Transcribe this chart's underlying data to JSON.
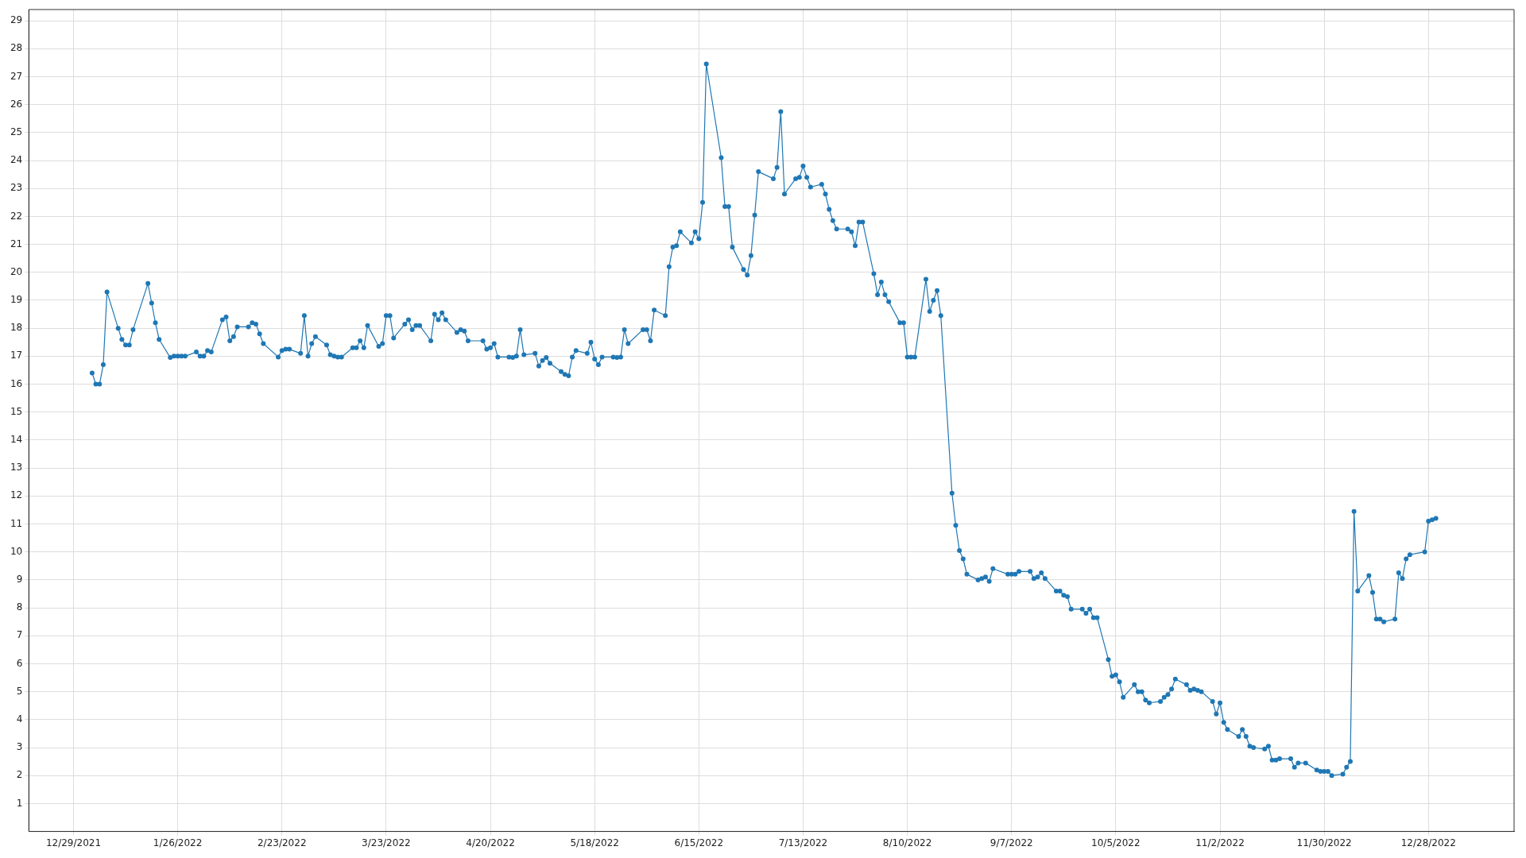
{
  "chart_data": {
    "type": "line",
    "color": "#1f77b4",
    "marker": "circle",
    "grid": true,
    "xlim": [
      "2021-12-17",
      "2023-01-20"
    ],
    "xticks": [
      {
        "value": "2021-12-29",
        "label": "12/29/2021"
      },
      {
        "value": "2022-01-26",
        "label": "1/26/2022"
      },
      {
        "value": "2022-02-23",
        "label": "2/23/2022"
      },
      {
        "value": "2022-03-23",
        "label": "3/23/2022"
      },
      {
        "value": "2022-04-20",
        "label": "4/20/2022"
      },
      {
        "value": "2022-05-18",
        "label": "5/18/2022"
      },
      {
        "value": "2022-06-15",
        "label": "6/15/2022"
      },
      {
        "value": "2022-07-13",
        "label": "7/13/2022"
      },
      {
        "value": "2022-08-10",
        "label": "8/10/2022"
      },
      {
        "value": "2022-09-07",
        "label": "9/7/2022"
      },
      {
        "value": "2022-10-05",
        "label": "10/5/2022"
      },
      {
        "value": "2022-11-02",
        "label": "11/2/2022"
      },
      {
        "value": "2022-11-30",
        "label": "11/30/2022"
      },
      {
        "value": "2022-12-28",
        "label": "12/28/2022"
      }
    ],
    "ylim": [
      0,
      29.4
    ],
    "yticks": [
      1,
      2,
      3,
      4,
      5,
      6,
      7,
      8,
      9,
      10,
      11,
      12,
      13,
      14,
      15,
      16,
      17,
      18,
      19,
      20,
      21,
      22,
      23,
      24,
      25,
      26,
      27,
      28,
      29
    ],
    "x": [
      "2022-01-03",
      "2022-01-04",
      "2022-01-05",
      "2022-01-06",
      "2022-01-07",
      "2022-01-10",
      "2022-01-11",
      "2022-01-12",
      "2022-01-13",
      "2022-01-14",
      "2022-01-18",
      "2022-01-19",
      "2022-01-20",
      "2022-01-21",
      "2022-01-24",
      "2022-01-25",
      "2022-01-26",
      "2022-01-27",
      "2022-01-28",
      "2022-01-31",
      "2022-02-01",
      "2022-02-02",
      "2022-02-03",
      "2022-02-04",
      "2022-02-07",
      "2022-02-08",
      "2022-02-09",
      "2022-02-10",
      "2022-02-11",
      "2022-02-14",
      "2022-02-15",
      "2022-02-16",
      "2022-02-17",
      "2022-02-18",
      "2022-02-22",
      "2022-02-23",
      "2022-02-24",
      "2022-02-25",
      "2022-02-28",
      "2022-03-01",
      "2022-03-02",
      "2022-03-03",
      "2022-03-04",
      "2022-03-07",
      "2022-03-08",
      "2022-03-09",
      "2022-03-10",
      "2022-03-11",
      "2022-03-14",
      "2022-03-15",
      "2022-03-16",
      "2022-03-17",
      "2022-03-18",
      "2022-03-21",
      "2022-03-22",
      "2022-03-23",
      "2022-03-24",
      "2022-03-25",
      "2022-03-28",
      "2022-03-29",
      "2022-03-30",
      "2022-03-31",
      "2022-04-01",
      "2022-04-04",
      "2022-04-05",
      "2022-04-06",
      "2022-04-07",
      "2022-04-08",
      "2022-04-11",
      "2022-04-12",
      "2022-04-13",
      "2022-04-14",
      "2022-04-18",
      "2022-04-19",
      "2022-04-20",
      "2022-04-21",
      "2022-04-22",
      "2022-04-25",
      "2022-04-26",
      "2022-04-27",
      "2022-04-28",
      "2022-04-29",
      "2022-05-02",
      "2022-05-03",
      "2022-05-04",
      "2022-05-05",
      "2022-05-06",
      "2022-05-09",
      "2022-05-10",
      "2022-05-11",
      "2022-05-12",
      "2022-05-13",
      "2022-05-16",
      "2022-05-17",
      "2022-05-18",
      "2022-05-19",
      "2022-05-20",
      "2022-05-23",
      "2022-05-24",
      "2022-05-25",
      "2022-05-26",
      "2022-05-27",
      "2022-05-31",
      "2022-06-01",
      "2022-06-02",
      "2022-06-03",
      "2022-06-06",
      "2022-06-07",
      "2022-06-08",
      "2022-06-09",
      "2022-06-10",
      "2022-06-13",
      "2022-06-14",
      "2022-06-15",
      "2022-06-16",
      "2022-06-17",
      "2022-06-21",
      "2022-06-22",
      "2022-06-23",
      "2022-06-24",
      "2022-06-27",
      "2022-06-28",
      "2022-06-29",
      "2022-06-30",
      "2022-07-01",
      "2022-07-05",
      "2022-07-06",
      "2022-07-07",
      "2022-07-08",
      "2022-07-11",
      "2022-07-12",
      "2022-07-13",
      "2022-07-14",
      "2022-07-15",
      "2022-07-18",
      "2022-07-19",
      "2022-07-20",
      "2022-07-21",
      "2022-07-22",
      "2022-07-25",
      "2022-07-26",
      "2022-07-27",
      "2022-07-28",
      "2022-07-29",
      "2022-08-01",
      "2022-08-02",
      "2022-08-03",
      "2022-08-04",
      "2022-08-05",
      "2022-08-08",
      "2022-08-09",
      "2022-08-10",
      "2022-08-11",
      "2022-08-12",
      "2022-08-15",
      "2022-08-16",
      "2022-08-17",
      "2022-08-18",
      "2022-08-19",
      "2022-08-22",
      "2022-08-23",
      "2022-08-24",
      "2022-08-25",
      "2022-08-26",
      "2022-08-29",
      "2022-08-30",
      "2022-08-31",
      "2022-09-01",
      "2022-09-02",
      "2022-09-06",
      "2022-09-07",
      "2022-09-08",
      "2022-09-09",
      "2022-09-12",
      "2022-09-13",
      "2022-09-14",
      "2022-09-15",
      "2022-09-16",
      "2022-09-19",
      "2022-09-20",
      "2022-09-21",
      "2022-09-22",
      "2022-09-23",
      "2022-09-26",
      "2022-09-27",
      "2022-09-28",
      "2022-09-29",
      "2022-09-30",
      "2022-10-03",
      "2022-10-04",
      "2022-10-05",
      "2022-10-06",
      "2022-10-07",
      "2022-10-10",
      "2022-10-11",
      "2022-10-12",
      "2022-10-13",
      "2022-10-14",
      "2022-10-17",
      "2022-10-18",
      "2022-10-19",
      "2022-10-20",
      "2022-10-21",
      "2022-10-24",
      "2022-10-25",
      "2022-10-26",
      "2022-10-27",
      "2022-10-28",
      "2022-10-31",
      "2022-11-01",
      "2022-11-02",
      "2022-11-03",
      "2022-11-04",
      "2022-11-07",
      "2022-11-08",
      "2022-11-09",
      "2022-11-10",
      "2022-11-11",
      "2022-11-14",
      "2022-11-15",
      "2022-11-16",
      "2022-11-17",
      "2022-11-18",
      "2022-11-21",
      "2022-11-22",
      "2022-11-23",
      "2022-11-25",
      "2022-11-28",
      "2022-11-29",
      "2022-11-30",
      "2022-12-01",
      "2022-12-02",
      "2022-12-05",
      "2022-12-06",
      "2022-12-07",
      "2022-12-08",
      "2022-12-09",
      "2022-12-12",
      "2022-12-13",
      "2022-12-14",
      "2022-12-15",
      "2022-12-16",
      "2022-12-19",
      "2022-12-20",
      "2022-12-21",
      "2022-12-22",
      "2022-12-23",
      "2022-12-27",
      "2022-12-28",
      "2022-12-29",
      "2022-12-30"
    ],
    "values": [
      16.4,
      16.0,
      16.0,
      16.7,
      19.3,
      18.0,
      17.6,
      17.4,
      17.4,
      17.95,
      19.6,
      18.9,
      18.2,
      17.6,
      16.95,
      17.0,
      17.0,
      17.0,
      17.0,
      17.15,
      17.0,
      17.0,
      17.2,
      17.15,
      18.3,
      18.4,
      17.55,
      17.7,
      18.05,
      18.05,
      18.2,
      18.15,
      17.8,
      17.45,
      16.97,
      17.2,
      17.25,
      17.25,
      17.1,
      18.45,
      17.0,
      17.45,
      17.7,
      17.4,
      17.05,
      17.0,
      16.97,
      16.97,
      17.3,
      17.3,
      17.55,
      17.3,
      18.1,
      17.35,
      17.45,
      18.45,
      18.45,
      17.65,
      18.15,
      18.3,
      17.95,
      18.1,
      18.1,
      17.55,
      18.5,
      18.3,
      18.55,
      18.3,
      17.85,
      17.95,
      17.9,
      17.55,
      17.55,
      17.25,
      17.3,
      17.45,
      16.97,
      16.97,
      16.95,
      17.0,
      17.95,
      17.05,
      17.1,
      16.65,
      16.85,
      16.95,
      16.75,
      16.45,
      16.35,
      16.3,
      16.97,
      17.2,
      17.1,
      17.5,
      16.9,
      16.7,
      16.97,
      16.97,
      16.95,
      16.97,
      17.95,
      17.45,
      17.95,
      17.95,
      17.55,
      18.65,
      18.45,
      20.2,
      20.9,
      20.95,
      21.45,
      21.05,
      21.45,
      21.2,
      22.5,
      27.45,
      24.1,
      22.35,
      22.35,
      20.9,
      20.1,
      19.9,
      20.6,
      22.05,
      23.6,
      23.35,
      23.75,
      25.75,
      22.8,
      23.35,
      23.4,
      23.8,
      23.4,
      23.05,
      23.15,
      22.8,
      22.25,
      21.85,
      21.55,
      21.55,
      21.45,
      20.95,
      21.8,
      21.8,
      19.95,
      19.2,
      19.65,
      19.2,
      18.95,
      18.2,
      18.2,
      16.97,
      16.97,
      16.97,
      19.75,
      18.6,
      19.0,
      19.35,
      18.45,
      12.1,
      10.95,
      10.05,
      9.75,
      9.2,
      9.0,
      9.05,
      9.1,
      8.95,
      9.4,
      9.2,
      9.2,
      9.2,
      9.3,
      9.3,
      9.05,
      9.1,
      9.25,
      9.05,
      8.6,
      8.6,
      8.45,
      8.4,
      7.95,
      7.95,
      7.8,
      7.95,
      7.65,
      7.65,
      6.15,
      5.55,
      5.6,
      5.35,
      4.8,
      5.25,
      5.0,
      5.0,
      4.7,
      4.6,
      4.65,
      4.8,
      4.9,
      5.1,
      5.45,
      5.25,
      5.05,
      5.1,
      5.05,
      5.0,
      4.65,
      4.2,
      4.6,
      3.9,
      3.65,
      3.4,
      3.65,
      3.4,
      3.05,
      3.0,
      2.95,
      3.05,
      2.55,
      2.55,
      2.6,
      2.6,
      2.3,
      2.45,
      2.45,
      2.2,
      2.15,
      2.15,
      2.15,
      2.0,
      2.05,
      2.3,
      2.5,
      11.45,
      8.6,
      9.15,
      8.55,
      7.6,
      7.6,
      7.5,
      7.6,
      9.25,
      9.05,
      9.75,
      9.9,
      10.0,
      11.1,
      11.15,
      11.2
    ]
  }
}
